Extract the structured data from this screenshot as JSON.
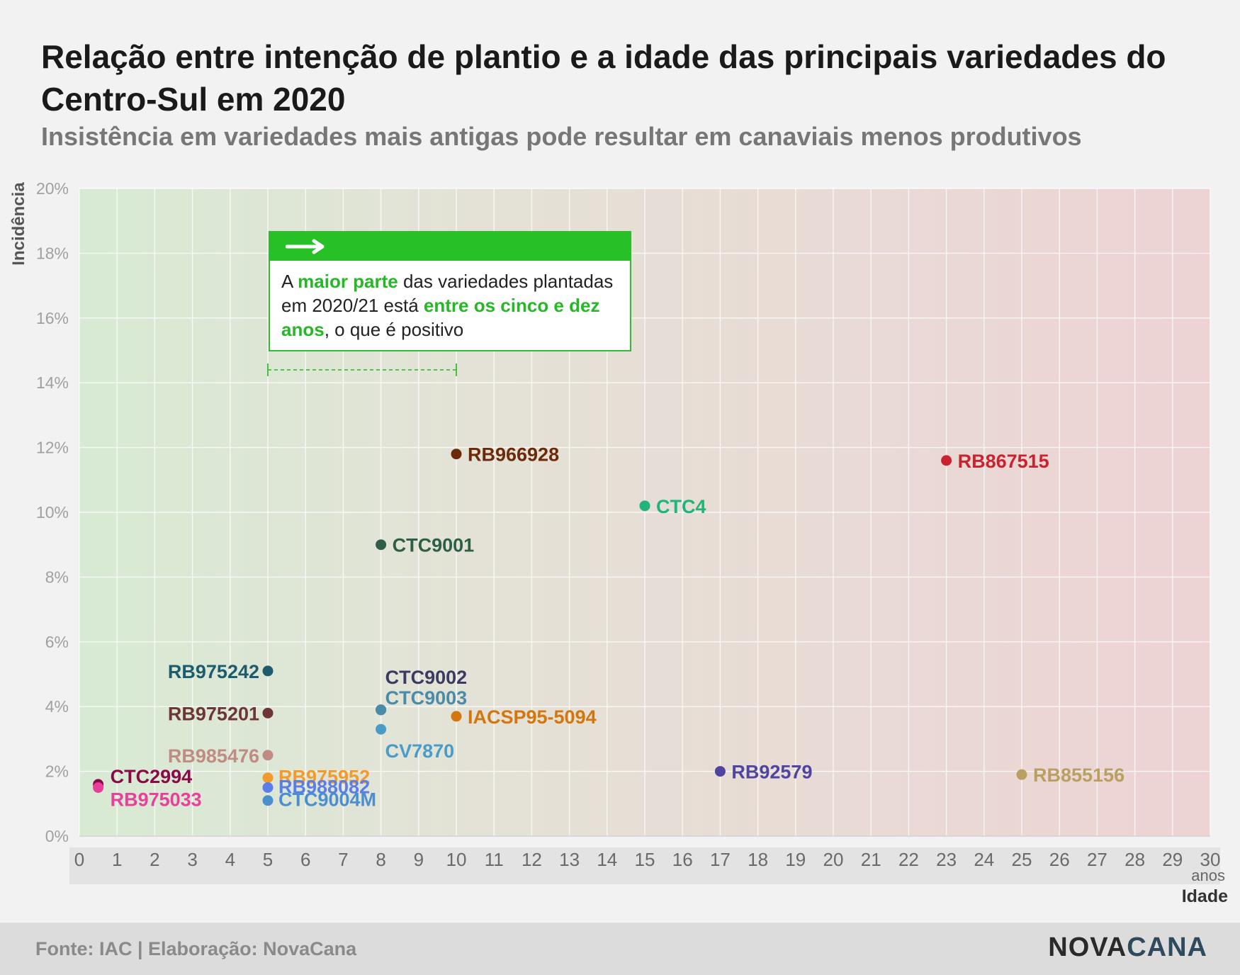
{
  "header": {
    "title": "Relação entre intenção de plantio e a idade das principais variedades do Centro-Sul em 2020",
    "subtitle": "Insistência em variedades mais antigas pode resultar em canaviais menos produtivos"
  },
  "annotation": {
    "part1": "A ",
    "hl1": "maior parte",
    "part2": " das variedades plantadas em 2020/21 está ",
    "hl2": "entre os cinco e dez anos",
    "part3": ", o que é positivo",
    "range_x": [
      5,
      10
    ],
    "range_y": 14.4,
    "arrow_icon": "arrow-right-icon"
  },
  "footer": {
    "source": "Fonte: IAC | Elaboração: NovaCana",
    "logo_part1": "NOVA",
    "logo_part2": "CANA"
  },
  "chart_data": {
    "type": "scatter",
    "xlabel": "Idade",
    "x_unit": "anos",
    "ylabel": "Incidência",
    "xlim": [
      0,
      30
    ],
    "ylim": [
      0,
      20
    ],
    "xticks": [
      "0",
      "1",
      "2",
      "3",
      "4",
      "5",
      "6",
      "7",
      "8",
      "9",
      "10",
      "11",
      "12",
      "13",
      "14",
      "15",
      "16",
      "17",
      "18",
      "19",
      "20",
      "21",
      "22",
      "23",
      "24",
      "25",
      "26",
      "27",
      "28",
      "29",
      "30"
    ],
    "yticks": [
      "0%",
      "2%",
      "4%",
      "6%",
      "8%",
      "10%",
      "12%",
      "14%",
      "16%",
      "18%",
      "20%"
    ],
    "grid": true,
    "background_gradient": [
      "#d7ead4",
      "#e4e2d6",
      "#edd3d4"
    ],
    "points": [
      {
        "name": "RB966928",
        "x": 10,
        "y": 11.8,
        "color": "#6b2a0a",
        "label_side": "right"
      },
      {
        "name": "RB867515",
        "x": 23,
        "y": 11.6,
        "color": "#c8232e",
        "label_side": "right"
      },
      {
        "name": "CTC4",
        "x": 15,
        "y": 10.2,
        "color": "#1fb57a",
        "label_side": "right"
      },
      {
        "name": "CTC9001",
        "x": 8,
        "y": 9.0,
        "color": "#2e5e47",
        "label_side": "right"
      },
      {
        "name": "RB975242",
        "x": 5,
        "y": 5.1,
        "color": "#1d5c6e",
        "label_side": "left"
      },
      {
        "name": "RB975201",
        "x": 5,
        "y": 3.8,
        "color": "#6d3535",
        "label_side": "left"
      },
      {
        "name": "RB985476",
        "x": 5,
        "y": 2.5,
        "color": "#c08b83",
        "label_side": "left"
      },
      {
        "name": "RB975952",
        "x": 5,
        "y": 1.8,
        "color": "#f29b2c",
        "label_side": "right"
      },
      {
        "name": "RB988082",
        "x": 5,
        "y": 1.5,
        "color": "#5a7ee8",
        "label_side": "right"
      },
      {
        "name": "CTC9004M",
        "x": 5,
        "y": 1.1,
        "color": "#4b8fd0",
        "label_side": "right"
      },
      {
        "name": "CTC9002",
        "x": 8,
        "y": 3.9,
        "color": "#3a3a64",
        "label_side": "upper"
      },
      {
        "name": "CTC9003",
        "x": 8,
        "y": 3.9,
        "color": "#4a8ba8",
        "label_side": "up"
      },
      {
        "name": "CV7870",
        "x": 8,
        "y": 3.3,
        "color": "#4a9cc8",
        "label_side": "below"
      },
      {
        "name": "IACSP95-5094",
        "x": 10,
        "y": 3.7,
        "color": "#d4760e",
        "label_side": "right"
      },
      {
        "name": "RB92579",
        "x": 17,
        "y": 2.0,
        "color": "#4f44a0",
        "label_side": "right"
      },
      {
        "name": "RB855156",
        "x": 25,
        "y": 1.9,
        "color": "#b9a060",
        "label_side": "right"
      },
      {
        "name": "CTC2994",
        "x": 0.5,
        "y": 1.6,
        "color": "#8a0a47",
        "label_side": "right-up"
      },
      {
        "name": "RB975033",
        "x": 0.5,
        "y": 1.5,
        "color": "#e8409a",
        "label_side": "right-down"
      }
    ]
  }
}
